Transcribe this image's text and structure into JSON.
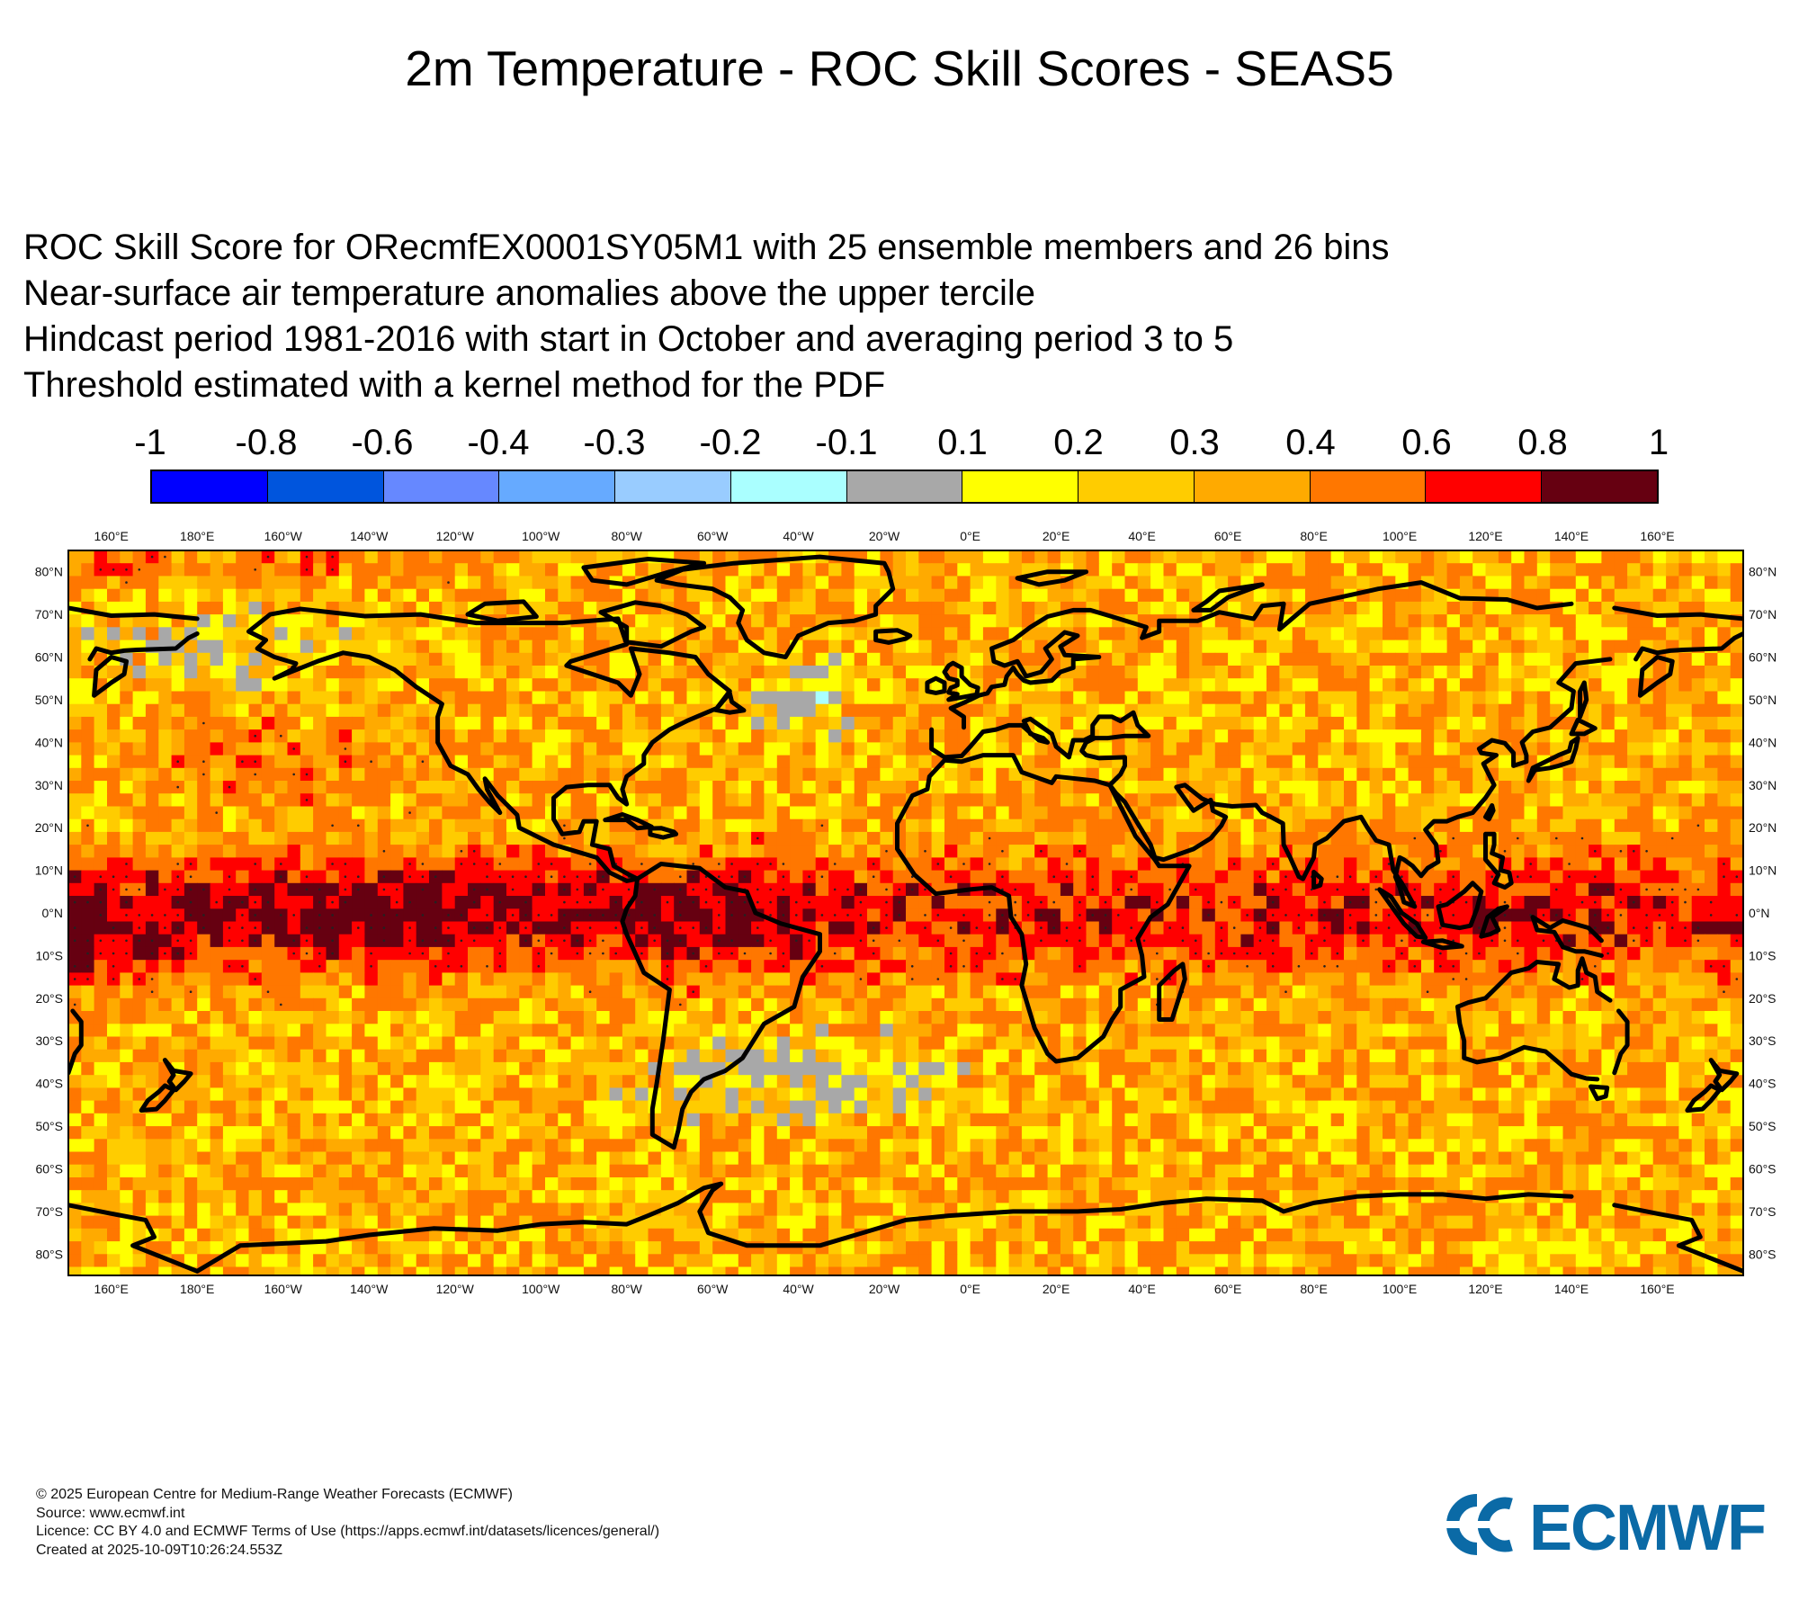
{
  "header": {
    "title": "2m Temperature - ROC Skill Scores - SEAS5",
    "subtitle_lines": [
      "ROC Skill Score for ORecmfEX0001SY05M1 with 25 ensemble members and 26 bins",
      "Near-surface air temperature anomalies above the upper tercile",
      "Hindcast period 1981-2016 with start in October and averaging period  3 to  5",
      "Threshold estimated with a kernel method for the PDF"
    ]
  },
  "legend": {
    "ticks": [
      "-1",
      "-0.8",
      "-0.6",
      "-0.4",
      "-0.3",
      "-0.2",
      "-0.1",
      "0.1",
      "0.2",
      "0.3",
      "0.4",
      "0.6",
      "0.8",
      "1"
    ],
    "colors": [
      "#0000ff",
      "#0055dd",
      "#6688ff",
      "#66aaff",
      "#99ccff",
      "#aaffff",
      "#a8a8a8",
      "#ffff00",
      "#ffcc00",
      "#ffaa00",
      "#ff7700",
      "#ff0000",
      "#660011"
    ]
  },
  "map": {
    "lon_labels": [
      "160°E",
      "180°E",
      "160°W",
      "140°W",
      "120°W",
      "100°W",
      "80°W",
      "60°W",
      "40°W",
      "20°W",
      "0°E",
      "20°E",
      "40°E",
      "60°E",
      "80°E",
      "100°E",
      "120°E",
      "140°E",
      "160°E"
    ],
    "lat_labels": [
      "80°N",
      "70°N",
      "60°N",
      "50°N",
      "40°N",
      "30°N",
      "20°N",
      "10°N",
      "0°N",
      "10°S",
      "20°S",
      "30°S",
      "40°S",
      "50°S",
      "60°S",
      "70°S",
      "80°S"
    ],
    "lon_range": [
      150,
      540
    ],
    "lat_range": [
      -85,
      85
    ]
  },
  "footer": {
    "lines": [
      "© 2025 European Centre for Medium-Range Weather Forecasts (ECMWF)",
      "Source: www.ecmwf.int",
      "Licence: CC BY 4.0 and ECMWF Terms of Use (https://apps.ecmwf.int/datasets/licences/general/)",
      "Created at 2025-10-09T10:26:24.553Z"
    ]
  },
  "logo": {
    "text": "ECMWF"
  }
}
